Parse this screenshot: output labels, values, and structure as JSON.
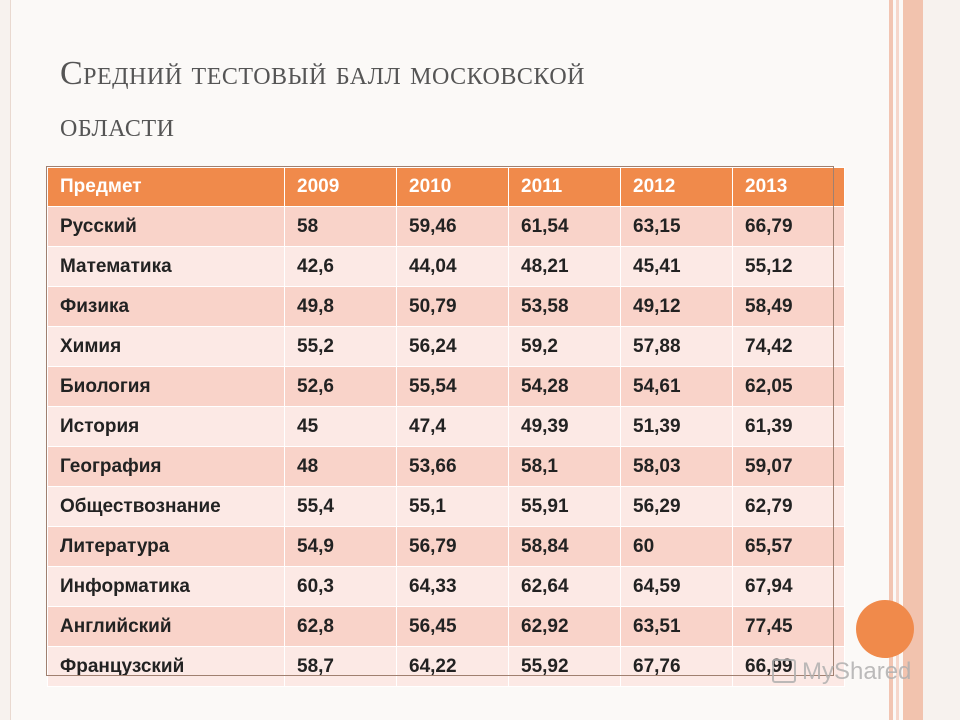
{
  "title": {
    "line1": "Средний тестовый балл московской",
    "line2": "области"
  },
  "table": {
    "headers": [
      "Предмет",
      "2009",
      "2010",
      "2011",
      "2012",
      "2013"
    ],
    "rows": [
      [
        "Русский",
        "58",
        "59,46",
        "61,54",
        "63,15",
        "66,79"
      ],
      [
        "Математика",
        "42,6",
        "44,04",
        "48,21",
        "45,41",
        "55,12"
      ],
      [
        "Физика",
        "49,8",
        "50,79",
        "53,58",
        "49,12",
        "58,49"
      ],
      [
        "Химия",
        "55,2",
        "56,24",
        "59,2",
        "57,88",
        "74,42"
      ],
      [
        "Биология",
        "52,6",
        "55,54",
        "54,28",
        "54,61",
        "62,05"
      ],
      [
        "История",
        "45",
        "47,4",
        "49,39",
        "51,39",
        "61,39"
      ],
      [
        "География",
        "48",
        "53,66",
        "58,1",
        "58,03",
        "59,07"
      ],
      [
        "Обществознание",
        "55,4",
        "55,1",
        "55,91",
        "56,29",
        "62,79"
      ],
      [
        "Литература",
        "54,9",
        "56,79",
        "58,84",
        "60",
        "65,57"
      ],
      [
        "Информатика",
        "60,3",
        "64,33",
        "62,64",
        "64,59",
        "67,94"
      ],
      [
        "Английский",
        "62,8",
        "56,45",
        "62,92",
        "63,51",
        "77,45"
      ],
      [
        "Французский",
        "58,7",
        "64,22",
        "55,92",
        "67,76",
        "66,99"
      ]
    ]
  },
  "watermark": {
    "text": "MyShared"
  },
  "colors": {
    "header_bg": "#f08a4b",
    "row_odd": "#f9d3c9",
    "row_even": "#fce9e5",
    "accent_circle": "#f08a4b"
  }
}
